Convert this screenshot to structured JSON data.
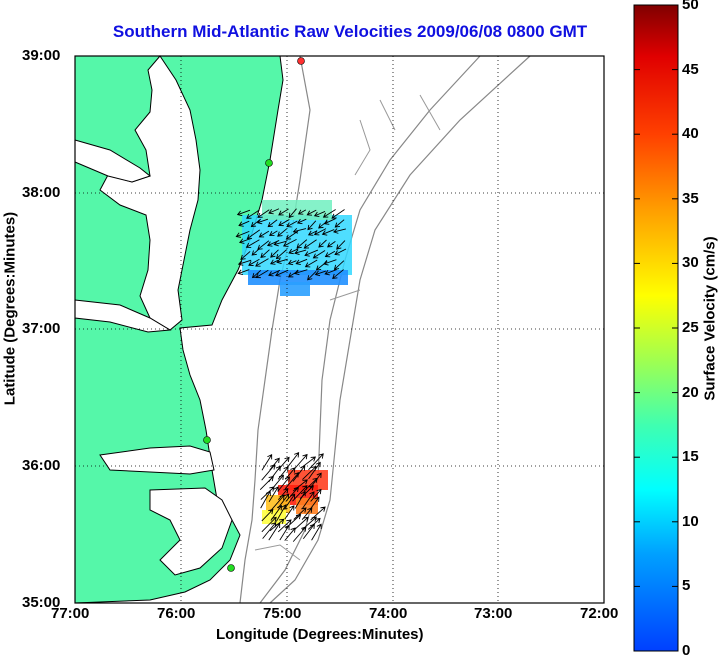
{
  "title": "Southern Mid-Atlantic Raw Velocities 2009/06/08 0800 GMT",
  "xlabel": "Longitude (Degrees:Minutes)",
  "ylabel": "Latitude (Degrees:Minutes)",
  "colorbar": {
    "label": "Surface Velocity (cm/s)",
    "ticks": [
      "0",
      "5",
      "10",
      "15",
      "20",
      "25",
      "30",
      "35",
      "40",
      "45",
      "50"
    ],
    "range": [
      0,
      50
    ],
    "colormap": "jet"
  },
  "axes": {
    "lon_ticks": [
      "77:00",
      "76:00",
      "75:00",
      "74:00",
      "73:00",
      "72:00"
    ],
    "lat_ticks": [
      "39:00",
      "38:00",
      "37:00",
      "36:00",
      "35:00"
    ],
    "lon_range": [
      -77,
      -72
    ],
    "lat_range": [
      35,
      39
    ],
    "grid": "dotted"
  },
  "colors": {
    "land": "#55f7a9",
    "water": "#ffffff",
    "title": "#1010e0",
    "coast": "#000000",
    "bathymetry": "#888888",
    "site_marker": "#22dd22",
    "site_marker_alt": "#ff3030"
  },
  "chart_data": {
    "type": "heatmap",
    "title": "Southern Mid-Atlantic Raw Velocities 2009/06/08 0800 GMT",
    "xlabel": "Longitude (Degrees:Minutes)",
    "ylabel": "Latitude (Degrees:Minutes)",
    "clim": [
      0,
      50
    ],
    "fields": [
      {
        "name": "",
        "lon_range": [
          -75.4,
          -74.3
        ],
        "lat_range": [
          37.3,
          37.95
        ],
        "speed_range_cm_s": [
          5,
          15
        ],
        "flow_direction": "southwest"
      },
      {
        "name": "",
        "lon_range": [
          -75.2,
          -74.55
        ],
        "lat_range": [
          35.55,
          36.05
        ],
        "speed_range_cm_s": [
          20,
          45
        ],
        "flow_direction": "northeast"
      }
    ]
  }
}
